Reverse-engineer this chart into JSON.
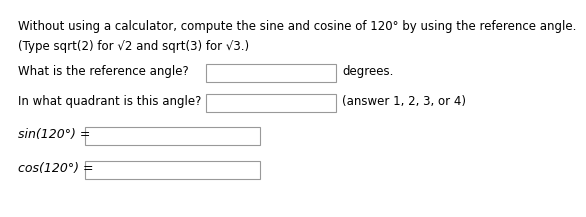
{
  "line1": "Without using a calculator, compute the sine and cosine of 120° by using the reference angle.",
  "line2": "(Type sqrt(2) for √2 and sqrt(3) for √3.)",
  "line3_label": "What is the reference angle?",
  "line3_suffix": "degrees.",
  "line4_label": "In what quadrant is this angle?",
  "line4_suffix": "(answer 1, 2, 3, or 4)",
  "line5_label": "sin(120°) =",
  "line6_label": "cos(120°) =",
  "bg_color": "#ffffff",
  "text_color": "#000000",
  "box_face_color": "#ffffff",
  "box_edge_color": "#999999",
  "font_size": 8.5
}
